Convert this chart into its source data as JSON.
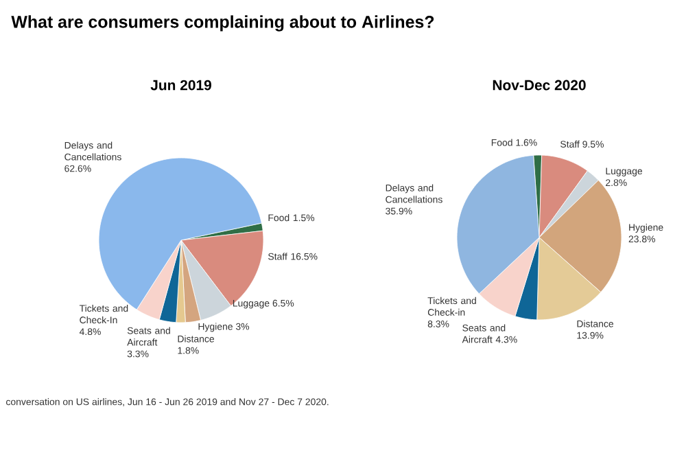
{
  "chart_data": [
    {
      "type": "pie",
      "title": "What are consumers complaining about to Airlines?",
      "subtitle": "Jun 2019",
      "categories": [
        "Food",
        "Staff",
        "Luggage",
        "Hygiene",
        "Distance",
        "Seats and Aircraft",
        "Tickets and Check-In",
        "Delays and Cancellations"
      ],
      "values": [
        1.5,
        16.5,
        6.5,
        3,
        1.8,
        3.3,
        4.8,
        62.6
      ],
      "value_labels": [
        "1.5%",
        "16.5%",
        "6.5%",
        "3%",
        "1.8%",
        "3.3%",
        "4.8%",
        "62.6%"
      ],
      "colors": [
        "#2f6e46",
        "#d98b7e",
        "#ccd5db",
        "#d4a57f",
        "#e5c98f",
        "#0f6697",
        "#f8d3cb",
        "#8ab8ec"
      ]
    },
    {
      "type": "pie",
      "subtitle": "Nov-Dec 2020",
      "categories": [
        "Food",
        "Staff",
        "Luggage",
        "Hygiene",
        "Distance",
        "Seats and Aircraft",
        "Tickets and Check-in",
        "Delays and Cancellations"
      ],
      "values": [
        1.6,
        9.5,
        2.8,
        23.8,
        13.9,
        4.3,
        8.3,
        35.9
      ],
      "value_labels": [
        "1.6%",
        "9.5%",
        "2.8%",
        "23.8%",
        "13.9%",
        "4.3%",
        "8.3%",
        "35.9%"
      ],
      "colors": [
        "#2f6e46",
        "#d98b7e",
        "#ccd5db",
        "#d2a57c",
        "#e4cb97",
        "#0f6697",
        "#f8d3cb",
        "#8fb6e0"
      ],
      "annotations": [
        "conversation on US airlines, Jun 16 - Jun 26 2019 and Nov 27 - Dec 7 2020."
      ]
    }
  ]
}
